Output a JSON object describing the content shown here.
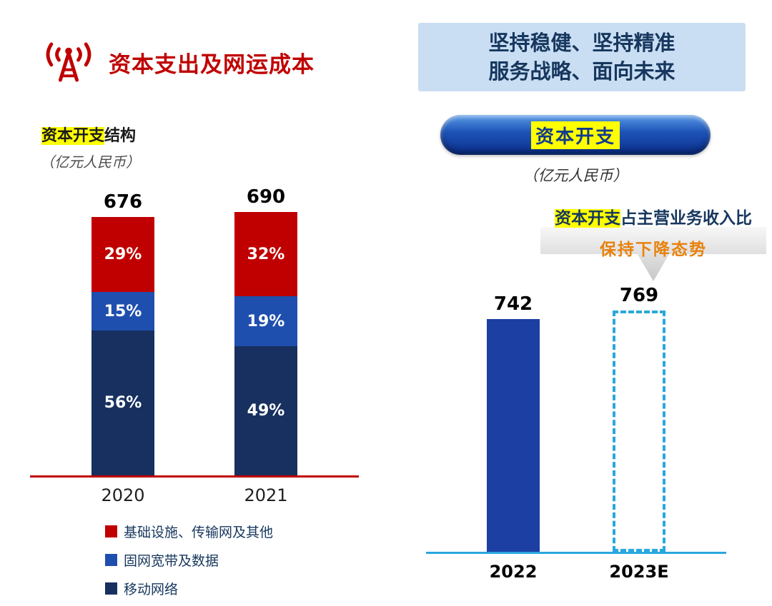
{
  "icons": {
    "header": "radio-tower"
  },
  "colors": {
    "accent_red": "#c00000",
    "mid_blue": "#1f4fae",
    "navy": "#17305f",
    "capex_blue": "#1b3fa3",
    "dashed_blue": "#2aa7dd",
    "banner_bg": "#c9def3",
    "banner_text": "#17375e",
    "highlight_yellow": "#ffff00",
    "orange": "#e8820c"
  },
  "left": {
    "title": "资本支出及网运成本",
    "subtitle_hl": "资本开支",
    "subtitle_rest": "结构",
    "unit": "（亿元人民币）"
  },
  "right": {
    "banner_line1": "坚持稳健、坚持精准",
    "banner_line2": "服务战略、面向未来",
    "pill_label": "资本开支",
    "unit": "（亿元人民币）",
    "callout_hl": "资本开支",
    "callout_rest": "占主营业务收入比",
    "callout_line2": "保持下降态势"
  },
  "chart_data": [
    {
      "type": "bar",
      "subtype": "stacked-percent",
      "title": "资本开支结构",
      "unit": "亿元人民币",
      "categories": [
        "2020",
        "2021"
      ],
      "totals": [
        676,
        690
      ],
      "series": [
        {
          "name": "基础设施、传输网及其他",
          "color": "#c00000",
          "values_pct": [
            29,
            32
          ]
        },
        {
          "name": "固网宽带及数据",
          "color": "#1f4fae",
          "values_pct": [
            15,
            19
          ]
        },
        {
          "name": "移动网络",
          "color": "#17305f",
          "values_pct": [
            56,
            49
          ]
        }
      ],
      "legend_position": "bottom",
      "baseline_color": "#c00000"
    },
    {
      "type": "bar",
      "title": "资本开支",
      "unit": "亿元人民币",
      "categories": [
        "2022",
        "2023E"
      ],
      "values": [
        742,
        769
      ],
      "styles": [
        "solid",
        "dashed"
      ],
      "annotation": "资本开支占主营业务收入比 保持下降态势",
      "baseline_color": "#2aa7dd"
    }
  ]
}
